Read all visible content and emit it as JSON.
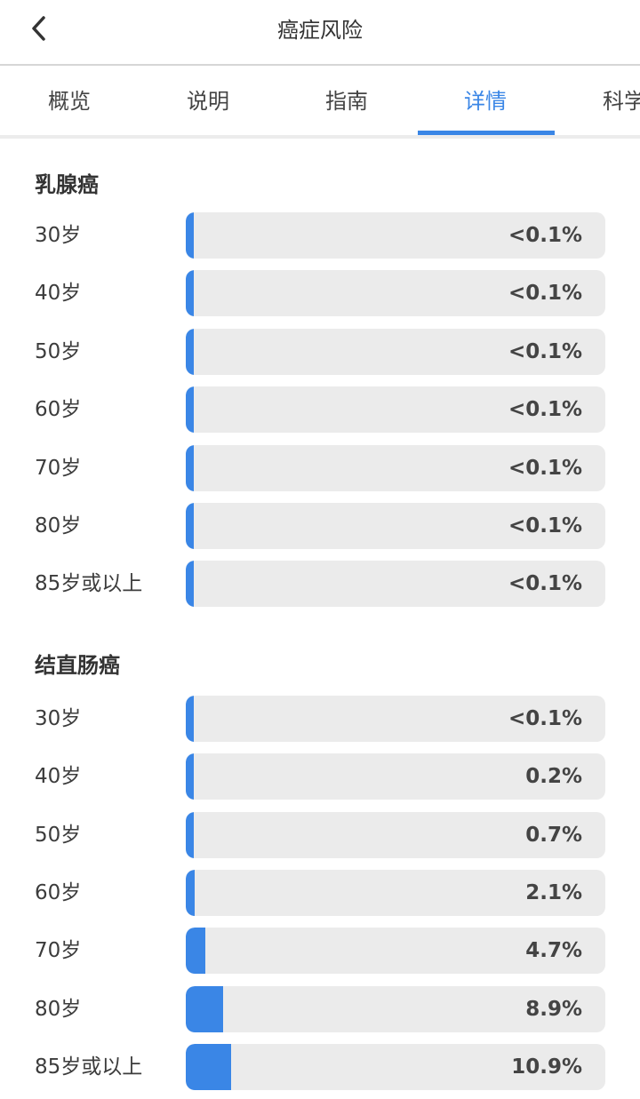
{
  "header": {
    "title": "癌症风险",
    "back_icon": "chevron-left-icon"
  },
  "tabs": [
    {
      "label": "概览"
    },
    {
      "label": "说明"
    },
    {
      "label": "指南"
    },
    {
      "label": "详情",
      "active": true
    },
    {
      "label": "科学"
    }
  ],
  "accent_color": "#3a86e6",
  "sections": [
    {
      "title": "乳腺癌",
      "rows": [
        {
          "age": "30岁",
          "value": 0.05,
          "label": "<0.1%"
        },
        {
          "age": "40岁",
          "value": 0.05,
          "label": "<0.1%"
        },
        {
          "age": "50岁",
          "value": 0.05,
          "label": "<0.1%"
        },
        {
          "age": "60岁",
          "value": 0.05,
          "label": "<0.1%"
        },
        {
          "age": "70岁",
          "value": 0.05,
          "label": "<0.1%"
        },
        {
          "age": "80岁",
          "value": 0.05,
          "label": "<0.1%"
        },
        {
          "age": "85岁或以上",
          "value": 0.05,
          "label": "<0.1%"
        }
      ]
    },
    {
      "title": "结直肠癌",
      "rows": [
        {
          "age": "30岁",
          "value": 0.05,
          "label": "<0.1%"
        },
        {
          "age": "40岁",
          "value": 0.2,
          "label": "0.2%"
        },
        {
          "age": "50岁",
          "value": 0.7,
          "label": "0.7%"
        },
        {
          "age": "60岁",
          "value": 2.1,
          "label": "2.1%"
        },
        {
          "age": "70岁",
          "value": 4.7,
          "label": "4.7%"
        },
        {
          "age": "80岁",
          "value": 8.9,
          "label": "8.9%"
        },
        {
          "age": "85岁或以上",
          "value": 10.9,
          "label": "10.9%"
        }
      ]
    }
  ]
}
